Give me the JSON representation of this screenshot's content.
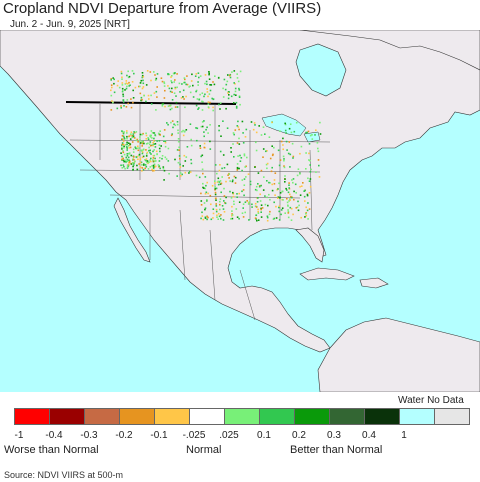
{
  "header": {
    "title": "Cropland NDVI Departure from Average (VIIRS)",
    "subtitle": "Jun. 2 - Jun. 9, 2025 [NRT]"
  },
  "legend": {
    "water_no_data_label": "Water No Data",
    "swatches": [
      {
        "color": "#ff0000"
      },
      {
        "color": "#9a0000"
      },
      {
        "color": "#c66a44"
      },
      {
        "color": "#e69420"
      },
      {
        "color": "#ffc648"
      },
      {
        "color": "#ffffff"
      },
      {
        "color": "#78f078"
      },
      {
        "color": "#32c850"
      },
      {
        "color": "#0a9a0a"
      },
      {
        "color": "#336633"
      },
      {
        "color": "#0a320a"
      },
      {
        "color": "#b4ffff"
      },
      {
        "color": "#e6e6e6"
      }
    ],
    "ticks": [
      "-1",
      "-0.4",
      "-0.3",
      "-0.2",
      "-0.1",
      "-.025",
      ".025",
      "0.1",
      "0.2",
      "0.3",
      "0.4",
      "1"
    ],
    "categories": {
      "worse": "Worse than Normal",
      "normal": "Normal",
      "better": "Better than Normal"
    }
  },
  "source": "Source: NDVI VIIRS at 500-m",
  "map": {
    "ocean_color": "#b4ffff",
    "land_color": "#eeeaee"
  }
}
